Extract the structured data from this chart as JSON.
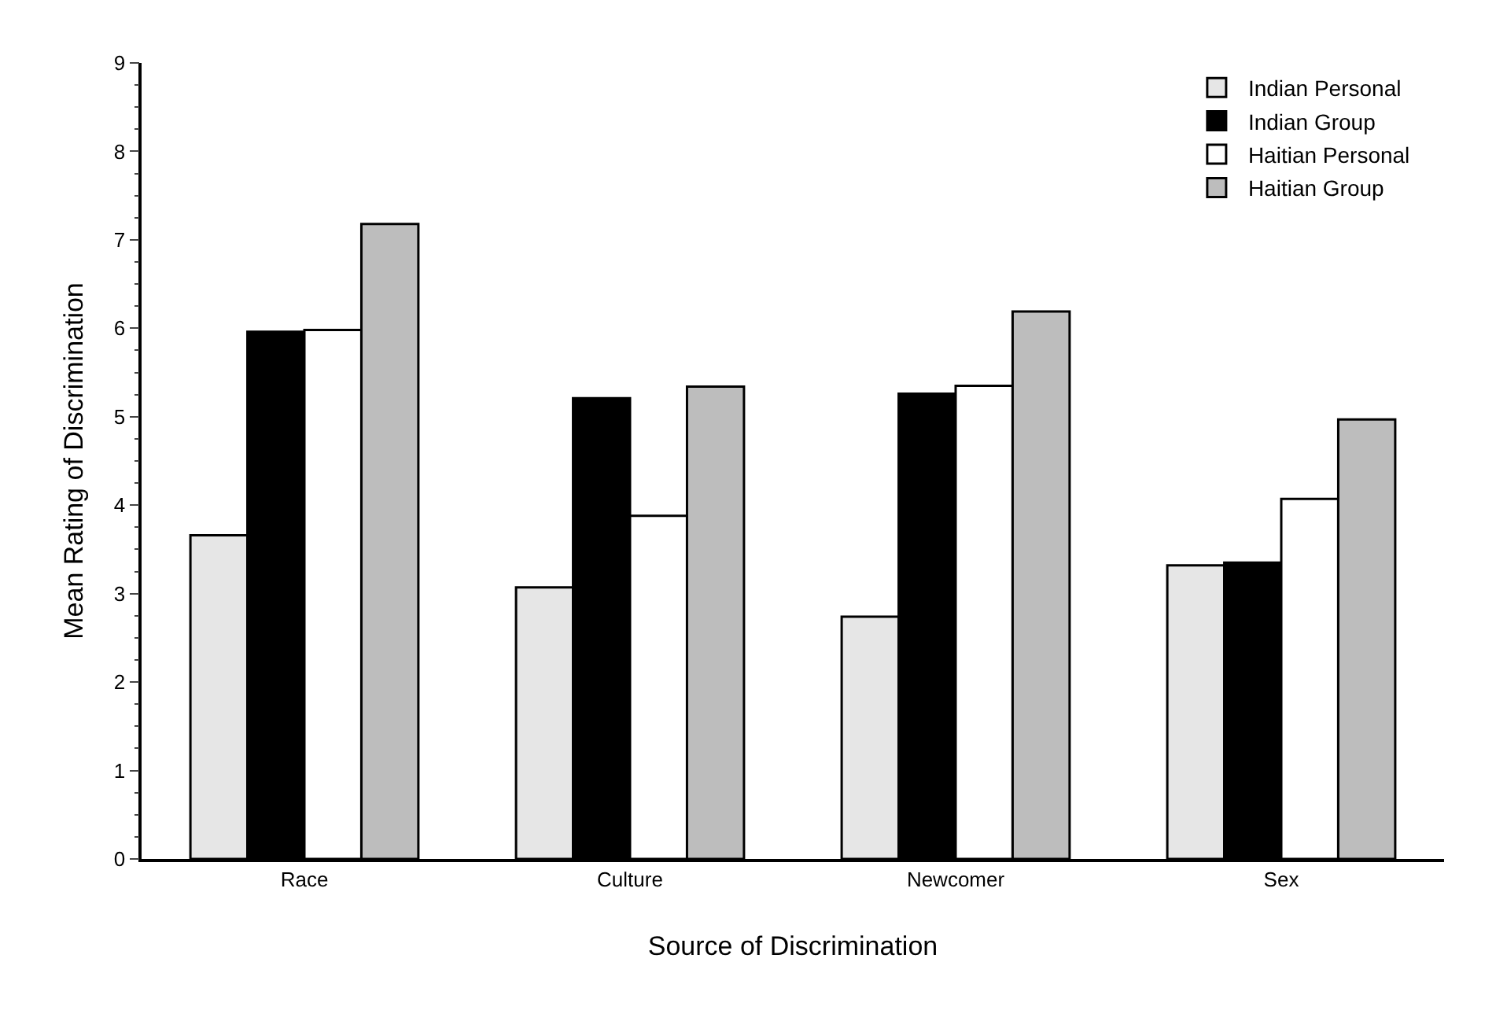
{
  "chart_data": {
    "type": "bar",
    "xlabel": "Source of Discrimination",
    "ylabel": "Mean Rating of Discrimination",
    "categories": [
      "Race",
      "Culture",
      "Newcomer",
      "Sex"
    ],
    "series": [
      {
        "name": "Indian Personal",
        "color": "#e6e6e6",
        "values": [
          3.66,
          3.07,
          2.74,
          3.32
        ]
      },
      {
        "name": "Indian Group",
        "color": "#000000",
        "values": [
          5.96,
          5.21,
          5.26,
          3.35
        ]
      },
      {
        "name": "Haitian Personal",
        "color": "#ffffff",
        "values": [
          5.98,
          3.88,
          5.35,
          4.07
        ]
      },
      {
        "name": "Haitian Group",
        "color": "#bdbdbd",
        "values": [
          7.18,
          5.34,
          6.19,
          4.97
        ]
      }
    ],
    "ylim": [
      0,
      9
    ],
    "yticks": [
      0,
      1,
      2,
      3,
      4,
      5,
      6,
      7,
      8,
      9
    ],
    "grid": false,
    "legend": "top right"
  }
}
